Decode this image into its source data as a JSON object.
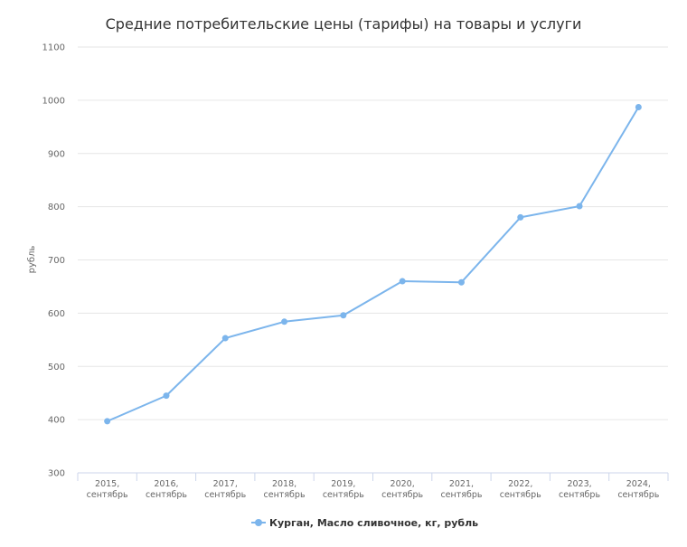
{
  "chart_data": {
    "type": "line",
    "title": "Средние потребительские цены (тарифы) на товары и услуги",
    "xlabel": "",
    "ylabel": "рубль",
    "ylim": [
      300,
      1100
    ],
    "yticks": [
      "300",
      "400",
      "500",
      "600",
      "700",
      "800",
      "900",
      "1000",
      "1100"
    ],
    "categories": [
      [
        "2015,",
        "сентябрь"
      ],
      [
        "2016,",
        "сентябрь"
      ],
      [
        "2017,",
        "сентябрь"
      ],
      [
        "2018,",
        "сентябрь"
      ],
      [
        "2019,",
        "сентябрь"
      ],
      [
        "2020,",
        "сентябрь"
      ],
      [
        "2021,",
        "сентябрь"
      ],
      [
        "2022,",
        "сентябрь"
      ],
      [
        "2023,",
        "сентябрь"
      ],
      [
        "2024,",
        "сентябрь"
      ]
    ],
    "series": [
      {
        "name": "Курган, Масло сливочное, кг, рубль",
        "color": "#7cb5ec",
        "values": [
          397,
          445,
          553,
          584,
          596,
          660,
          658,
          780,
          801,
          987
        ]
      }
    ],
    "grid": true,
    "legend": "bottom-center"
  }
}
